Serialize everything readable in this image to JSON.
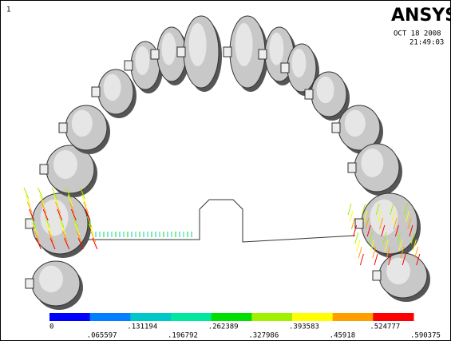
{
  "window": {
    "number": "1",
    "logo": "ANSYS",
    "date": "OCT 18 2008",
    "time": "21:49:03"
  },
  "legend": {
    "colors": [
      "#0000ff",
      "#0080ff",
      "#00c8c8",
      "#00e8a0",
      "#00e000",
      "#a0f000",
      "#ffff00",
      "#ffa000",
      "#ff0000"
    ],
    "labels": [
      "0",
      ".065597",
      ".131194",
      ".196792",
      ".262389",
      ".327986",
      ".393583",
      ".45918",
      ".524777",
      ".590375"
    ]
  }
}
